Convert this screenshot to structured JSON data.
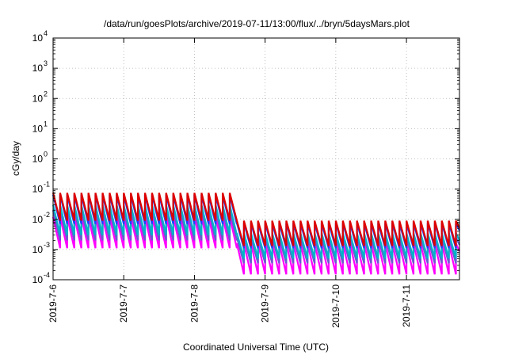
{
  "chart_data": {
    "type": "line",
    "title": "/data/run/goesPlots/archive/2019-07-11/13:00/flux/../bryn/5daysMars.plot",
    "xlabel": "Coordinated Universal Time (UTC)",
    "ylabel": "cGy/day",
    "y_scale": "log",
    "ylim": [
      0.0001,
      10000
    ],
    "y_ticks": [
      {
        "exp": "-4",
        "value": 0.0001
      },
      {
        "exp": "-3",
        "value": 0.001
      },
      {
        "exp": "-2",
        "value": 0.01
      },
      {
        "exp": "-1",
        "value": 0.1
      },
      {
        "exp": "0",
        "value": 1
      },
      {
        "exp": "1",
        "value": 10
      },
      {
        "exp": "2",
        "value": 100
      },
      {
        "exp": "3",
        "value": 1000
      },
      {
        "exp": "4",
        "value": 10000
      }
    ],
    "y_tick_base": "10",
    "x_range_days": [
      0,
      5.75
    ],
    "x_ticks": [
      {
        "label": "2019-7-6",
        "day": 0
      },
      {
        "label": "2019-7-7",
        "day": 1
      },
      {
        "label": "2019-7-8",
        "day": 2
      },
      {
        "label": "2019-7-9",
        "day": 3
      },
      {
        "label": "2019-7-10",
        "day": 4
      },
      {
        "label": "2019-7-11",
        "day": 5
      }
    ],
    "grid": true,
    "sawtooth_period_days": 0.1,
    "step_day": 2.6,
    "series": [
      {
        "color": "#dd0000",
        "high_before": 0.075,
        "low_before": 0.009,
        "high_after": 0.009,
        "low_after": 0.0013
      },
      {
        "color": "#1a44ff",
        "high_before": 0.065,
        "low_before": 0.007,
        "high_after": 0.0075,
        "low_after": 0.0011
      },
      {
        "color": "#00b4c8",
        "high_before": 0.03,
        "low_before": 0.003,
        "high_after": 0.0035,
        "low_after": 0.0005
      },
      {
        "color": "#6a5acd",
        "high_before": 0.02,
        "low_before": 0.002,
        "high_after": 0.0025,
        "low_after": 0.00035
      },
      {
        "color": "#ff00ff",
        "high_before": 0.012,
        "low_before": 0.0011,
        "high_after": 0.0016,
        "low_after": 0.00015
      }
    ]
  }
}
